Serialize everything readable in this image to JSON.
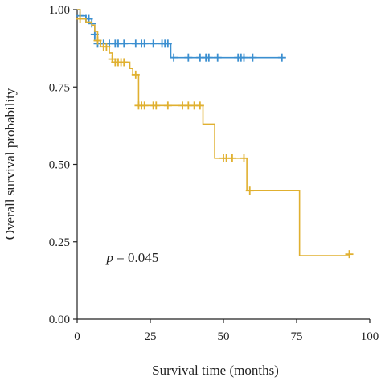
{
  "chart_data": {
    "type": "line",
    "title": "",
    "xlabel": "Survival time (months)",
    "ylabel": "Overall survival probability",
    "xlim": [
      0,
      100
    ],
    "ylim": [
      0,
      1
    ],
    "xticks": [
      0,
      25,
      50,
      75,
      100
    ],
    "yticks": [
      0.0,
      0.25,
      0.5,
      0.75,
      1.0
    ],
    "xtick_labels": [
      "0",
      "25",
      "50",
      "75",
      "100"
    ],
    "ytick_labels": [
      "0.00",
      "0.25",
      "0.50",
      "0.75",
      "1.00"
    ],
    "grid": false,
    "annotation": {
      "italic": "p",
      "text": " = 0.045",
      "x": 10,
      "y": 0.185
    },
    "series": [
      {
        "color": "#3b8fd0",
        "steps": [
          [
            0,
            1.0
          ],
          [
            1,
            0.98
          ],
          [
            3,
            0.97
          ],
          [
            5,
            0.95
          ],
          [
            6,
            0.9
          ],
          [
            8,
            0.89
          ],
          [
            32,
            0.845
          ],
          [
            70,
            0.845
          ]
        ],
        "censored": [
          [
            1,
            0.98
          ],
          [
            3,
            0.97
          ],
          [
            4,
            0.97
          ],
          [
            5,
            0.955
          ],
          [
            6,
            0.92
          ],
          [
            7,
            0.89
          ],
          [
            9,
            0.89
          ],
          [
            11,
            0.89
          ],
          [
            13,
            0.89
          ],
          [
            14,
            0.89
          ],
          [
            16,
            0.89
          ],
          [
            20,
            0.89
          ],
          [
            22,
            0.89
          ],
          [
            23,
            0.89
          ],
          [
            26,
            0.89
          ],
          [
            29,
            0.89
          ],
          [
            30,
            0.89
          ],
          [
            31,
            0.89
          ],
          [
            33,
            0.845
          ],
          [
            38,
            0.845
          ],
          [
            42,
            0.845
          ],
          [
            44,
            0.845
          ],
          [
            45,
            0.845
          ],
          [
            48,
            0.845
          ],
          [
            55,
            0.845
          ],
          [
            56,
            0.845
          ],
          [
            57,
            0.845
          ],
          [
            60,
            0.845
          ],
          [
            70,
            0.845
          ]
        ]
      },
      {
        "color": "#e0b030",
        "steps": [
          [
            0,
            1.0
          ],
          [
            1,
            0.97
          ],
          [
            3,
            0.96
          ],
          [
            5,
            0.95
          ],
          [
            6,
            0.93
          ],
          [
            7,
            0.9
          ],
          [
            8,
            0.88
          ],
          [
            11,
            0.86
          ],
          [
            12,
            0.83
          ],
          [
            18,
            0.81
          ],
          [
            19,
            0.79
          ],
          [
            21,
            0.69
          ],
          [
            43,
            0.63
          ],
          [
            47,
            0.52
          ],
          [
            58,
            0.415
          ],
          [
            76,
            0.205
          ],
          [
            93,
            0.205
          ]
        ],
        "censored": [
          [
            1,
            0.97
          ],
          [
            7,
            0.9
          ],
          [
            9,
            0.88
          ],
          [
            10,
            0.88
          ],
          [
            12,
            0.84
          ],
          [
            13,
            0.83
          ],
          [
            14,
            0.83
          ],
          [
            15,
            0.83
          ],
          [
            16,
            0.83
          ],
          [
            20,
            0.79
          ],
          [
            21,
            0.69
          ],
          [
            22,
            0.69
          ],
          [
            23,
            0.69
          ],
          [
            26,
            0.69
          ],
          [
            27,
            0.69
          ],
          [
            31,
            0.69
          ],
          [
            36,
            0.69
          ],
          [
            38,
            0.69
          ],
          [
            40,
            0.69
          ],
          [
            42,
            0.69
          ],
          [
            50,
            0.52
          ],
          [
            51,
            0.52
          ],
          [
            53,
            0.52
          ],
          [
            57,
            0.52
          ],
          [
            59,
            0.415
          ],
          [
            93,
            0.21
          ]
        ]
      }
    ]
  }
}
